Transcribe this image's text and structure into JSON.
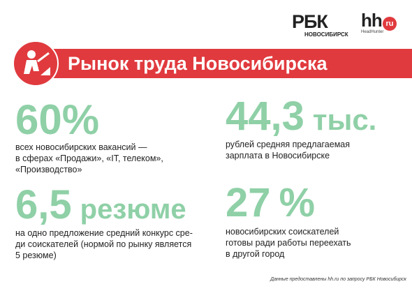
{
  "header": {
    "rbc_logo": "РБК",
    "rbc_city": "НОВОСИБИРСК",
    "hh_logo": "hh",
    "hh_ru": "ru",
    "hh_caption": "HeadHunter"
  },
  "title": "Рынок труда Новосибирска",
  "stats": [
    {
      "number": "60%",
      "lines": [
        "всех новосибирских вакансий —",
        "в сферах «Продажи», «IT, телеком»,",
        "«Производство»"
      ]
    },
    {
      "number": "44,3",
      "unit": "тыс.",
      "lines": [
        "рублей средняя предлагаемая",
        "зарплата в Новосибирске"
      ]
    },
    {
      "number": "6,5",
      "unit": "резюме",
      "lines": [
        "на одно предложение средний конкурс сре-",
        "ди соискателей (нормой по рынку является",
        "5 резюме)"
      ]
    },
    {
      "number": "27",
      "unit": "%",
      "lines": [
        "новосибирских соискателей",
        "готовы ради работы переехать",
        "в другой город"
      ]
    }
  ],
  "footer": "Данные предоставлены hh.ru по запросу РБК Новосибирск"
}
